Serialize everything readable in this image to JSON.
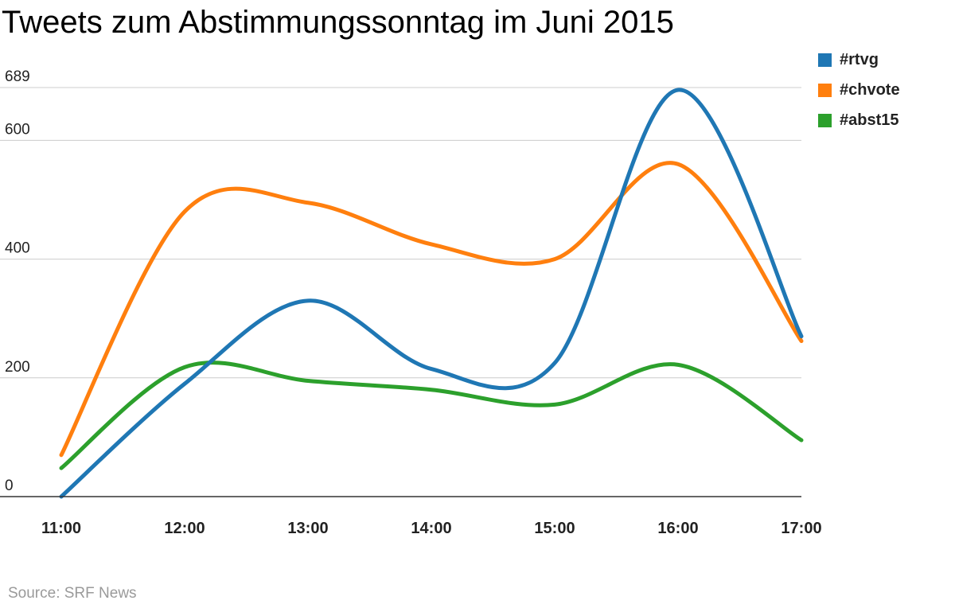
{
  "chart_data": {
    "type": "line",
    "title": "Tweets zum Abstimmungssonntag im Juni 2015",
    "xlabel": "",
    "ylabel": "",
    "categories": [
      "11:00",
      "12:00",
      "13:00",
      "14:00",
      "15:00",
      "16:00",
      "17:00"
    ],
    "y_ticks": [
      0,
      200,
      400,
      600,
      689
    ],
    "ylim": [
      0,
      689
    ],
    "grid": true,
    "legend_position": "top-right",
    "series": [
      {
        "name": "#rtvg",
        "color": "#1f77b4",
        "values": [
          0,
          190,
          330,
          215,
          225,
          685,
          270
        ]
      },
      {
        "name": "#chvote",
        "color": "#ff7f0e",
        "values": [
          70,
          480,
          495,
          425,
          400,
          560,
          262
        ]
      },
      {
        "name": "#abst15",
        "color": "#2ca02c",
        "values": [
          48,
          218,
          195,
          180,
          155,
          222,
          95
        ]
      }
    ],
    "source": "Source: SRF News"
  }
}
